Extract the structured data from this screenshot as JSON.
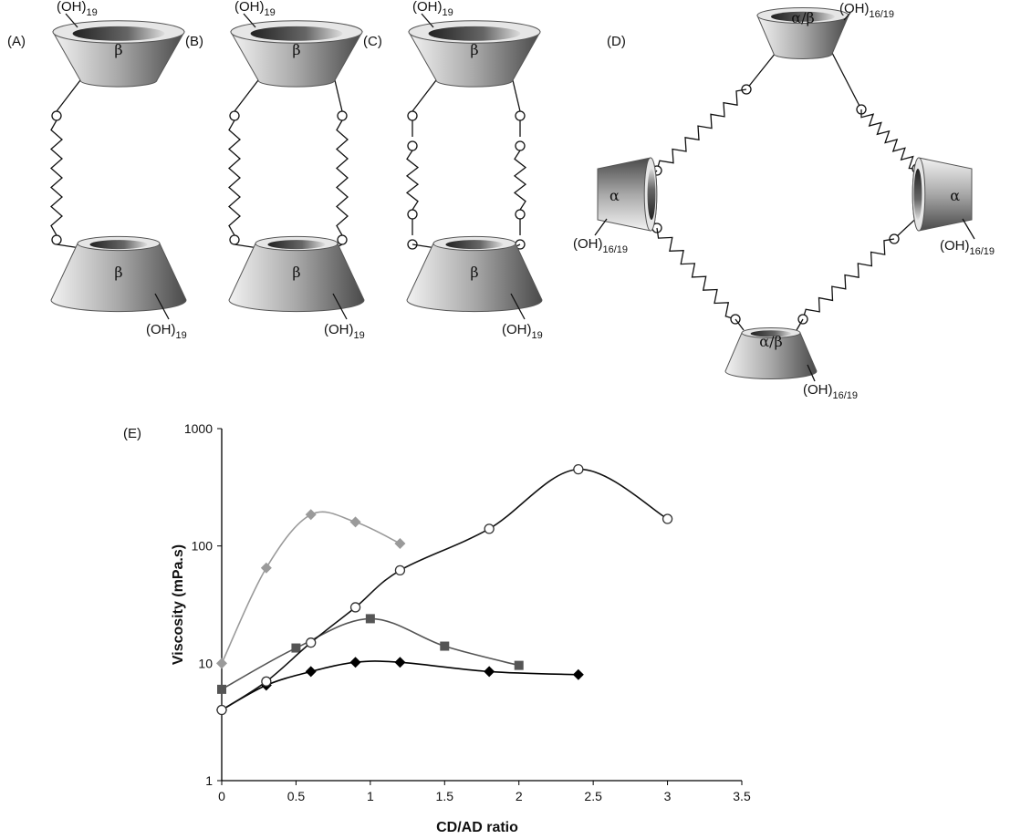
{
  "diagram": {
    "panels": [
      {
        "label": "(A)",
        "top": {
          "unit": "β",
          "hydroxyl": {
            "base": "(OH)",
            "sub": "19"
          }
        },
        "bottom": {
          "unit": "β",
          "hydroxyl": {
            "base": "(OH)",
            "sub": "19"
          }
        }
      },
      {
        "label": "(B)",
        "top": {
          "unit": "β",
          "hydroxyl": {
            "base": "(OH)",
            "sub": "19"
          }
        },
        "bottom": {
          "unit": "β",
          "hydroxyl": {
            "base": "(OH)",
            "sub": "19"
          }
        }
      },
      {
        "label": "(C)",
        "top": {
          "unit": "β",
          "hydroxyl": {
            "base": "(OH)",
            "sub": "19"
          }
        },
        "bottom": {
          "unit": "β",
          "hydroxyl": {
            "base": "(OH)",
            "sub": "19"
          }
        }
      },
      {
        "label": "(D)",
        "top": {
          "unit": "α/β",
          "hydroxyl": {
            "base": "(OH)",
            "sub": "16/19"
          }
        },
        "left": {
          "unit": "α",
          "hydroxyl": {
            "base": "(OH)",
            "sub": "16/19"
          }
        },
        "right": {
          "unit": "α",
          "hydroxyl": {
            "base": "(OH)",
            "sub": "16/19"
          }
        },
        "bottom": {
          "unit": "α/β",
          "hydroxyl": {
            "base": "(OH)",
            "sub": "16/19"
          }
        }
      }
    ]
  },
  "chart_data": {
    "type": "scatter",
    "label": "(E)",
    "x_label": "CD/AD ratio",
    "y_label": "Viscosity (mPa.s)",
    "yscale": "log",
    "xlim": [
      0,
      3.5
    ],
    "ylim": [
      1,
      1000
    ],
    "xticks": [
      0,
      0.5,
      1,
      1.5,
      2,
      2.5,
      3,
      3.5
    ],
    "yticks": [
      1,
      10,
      100,
      1000
    ],
    "series": [
      {
        "color": "#9a9a9a",
        "marker": "diamond",
        "x": [
          0,
          0.3,
          0.6,
          0.9,
          1.2
        ],
        "values": [
          10,
          65,
          185,
          160,
          105
        ]
      },
      {
        "color": "#555555",
        "marker": "square",
        "x": [
          0,
          0.5,
          1,
          1.5,
          2
        ],
        "values": [
          6,
          13.5,
          24,
          14,
          9.6
        ]
      },
      {
        "color": "#000000",
        "marker": "diamond",
        "x": [
          0,
          0.3,
          0.6,
          0.9,
          1.2,
          1.8,
          2.4
        ],
        "values": [
          4,
          6.5,
          8.5,
          10.2,
          10.2,
          8.5,
          8
        ]
      },
      {
        "color": "#333333",
        "marker": "circle-open",
        "x": [
          0,
          0.3,
          0.6,
          0.9,
          1.2,
          1.8,
          2.4,
          3
        ],
        "values": [
          4,
          7,
          15,
          30,
          62,
          140,
          450,
          170
        ]
      }
    ]
  }
}
